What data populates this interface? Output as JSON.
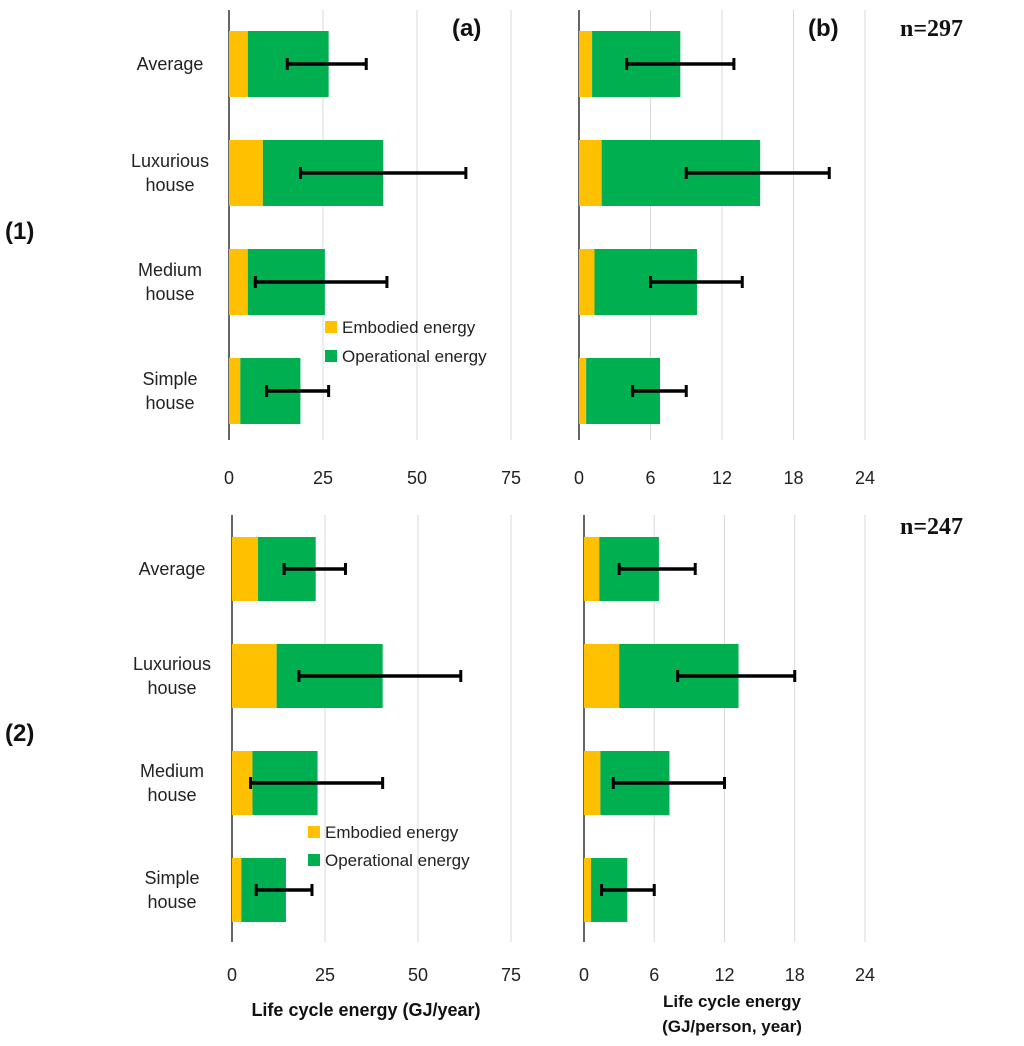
{
  "colors": {
    "embodied": "#FFC000",
    "operational": "#00B050",
    "error_bar": "#000000",
    "grid": "#D9D9D9",
    "axis": "#000000"
  },
  "figure": {
    "panel_a_label": "(a)",
    "panel_b_label": "(b)",
    "row1_label": "(1)",
    "row2_label": "(2)",
    "n_row1": "n=297",
    "n_row2": "n=247",
    "legend": {
      "embodied": "Embodied energy",
      "operational": "Operational energy"
    },
    "xlabel_left": "Life cycle energy (GJ/year)",
    "xlabel_right_line1": "Life cycle energy",
    "xlabel_right_line2": "(GJ/person,  year)"
  },
  "chart_data": [
    {
      "id": "1a",
      "type": "bar",
      "orientation": "horizontal",
      "stacked": true,
      "categories": [
        [
          "Average"
        ],
        [
          "Luxurious",
          "house"
        ],
        [
          "Medium",
          "house"
        ],
        [
          "Simple",
          "house"
        ]
      ],
      "series": [
        {
          "name": "Embodied energy",
          "values": [
            5,
            9,
            5,
            3
          ]
        },
        {
          "name": "Operational energy",
          "values": [
            21.5,
            32,
            20.5,
            16
          ]
        }
      ],
      "error_bars": [
        [
          15.5,
          36.5
        ],
        [
          19,
          63
        ],
        [
          7,
          42
        ],
        [
          10,
          26.5
        ]
      ],
      "xlim": [
        0,
        75
      ],
      "xticks": [
        "0",
        "25",
        "50",
        "75"
      ],
      "xlabel": "Life cycle energy (GJ/year)"
    },
    {
      "id": "1b",
      "type": "bar",
      "orientation": "horizontal",
      "stacked": true,
      "categories": [
        [
          "Average"
        ],
        [
          "Luxurious",
          "house"
        ],
        [
          "Medium",
          "house"
        ],
        [
          "Simple",
          "house"
        ]
      ],
      "series": [
        {
          "name": "Embodied energy",
          "values": [
            1.1,
            1.9,
            1.3,
            0.6
          ]
        },
        {
          "name": "Operational energy",
          "values": [
            7.4,
            13.3,
            8.6,
            6.2
          ]
        }
      ],
      "error_bars": [
        [
          4,
          13
        ],
        [
          9,
          21
        ],
        [
          6,
          13.7
        ],
        [
          4.5,
          9
        ]
      ],
      "xlim": [
        0,
        24
      ],
      "xticks": [
        "0",
        "6",
        "12",
        "18",
        "24"
      ],
      "xlabel": "Life cycle energy (GJ/person, year)"
    },
    {
      "id": "2a",
      "type": "bar",
      "orientation": "horizontal",
      "stacked": true,
      "categories": [
        [
          "Average"
        ],
        [
          "Luxurious",
          "house"
        ],
        [
          "Medium",
          "house"
        ],
        [
          "Simple",
          "house"
        ]
      ],
      "series": [
        {
          "name": "Embodied energy",
          "values": [
            7,
            12,
            5.5,
            2.5
          ]
        },
        {
          "name": "Operational energy",
          "values": [
            15.5,
            28.5,
            17.5,
            12
          ]
        }
      ],
      "error_bars": [
        [
          14,
          30.5
        ],
        [
          18,
          61.5
        ],
        [
          5,
          40.5
        ],
        [
          6.5,
          21.5
        ]
      ],
      "xlim": [
        0,
        75
      ],
      "xticks": [
        "0",
        "25",
        "50",
        "75"
      ],
      "xlabel": "Life cycle energy (GJ/year)"
    },
    {
      "id": "2b",
      "type": "bar",
      "orientation": "horizontal",
      "stacked": true,
      "categories": [
        [
          "Average"
        ],
        [
          "Luxurious",
          "house"
        ],
        [
          "Medium",
          "house"
        ],
        [
          "Simple",
          "house"
        ]
      ],
      "series": [
        {
          "name": "Embodied energy",
          "values": [
            1.3,
            3,
            1.4,
            0.6
          ]
        },
        {
          "name": "Operational energy",
          "values": [
            5.1,
            10.2,
            5.9,
            3.1
          ]
        }
      ],
      "error_bars": [
        [
          3,
          9.5
        ],
        [
          8,
          18
        ],
        [
          2.5,
          12
        ],
        [
          1.5,
          6
        ]
      ],
      "xlim": [
        0,
        24
      ],
      "xticks": [
        "0",
        "6",
        "12",
        "18",
        "24"
      ],
      "xlabel": "Life cycle energy (GJ/person, year)"
    }
  ]
}
